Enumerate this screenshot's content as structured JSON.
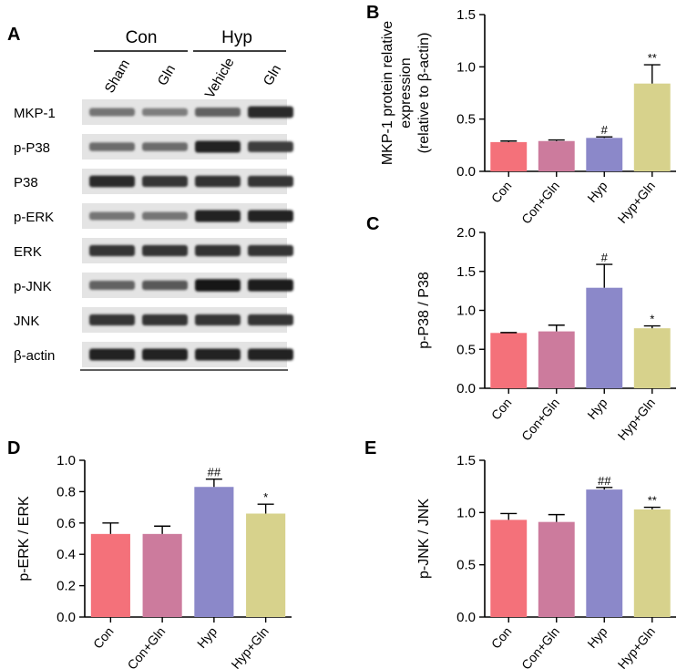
{
  "figure": {
    "blot": {
      "panel_label": "A",
      "groups": [
        "Con",
        "Hyp"
      ],
      "lanes": [
        "Sham",
        "Gln",
        "Vehicle",
        "Gln"
      ],
      "rows": [
        {
          "label": "MKP-1",
          "intensity": [
            0.45,
            0.4,
            0.55,
            0.85
          ]
        },
        {
          "label": "p-P38",
          "intensity": [
            0.5,
            0.5,
            0.9,
            0.75
          ]
        },
        {
          "label": "P38",
          "intensity": [
            0.85,
            0.8,
            0.82,
            0.8
          ]
        },
        {
          "label": "p-ERK",
          "intensity": [
            0.45,
            0.45,
            0.9,
            0.9
          ]
        },
        {
          "label": "ERK",
          "intensity": [
            0.8,
            0.8,
            0.82,
            0.8
          ]
        },
        {
          "label": "p-JNK",
          "intensity": [
            0.55,
            0.6,
            0.95,
            0.92
          ]
        },
        {
          "label": "JNK",
          "intensity": [
            0.8,
            0.8,
            0.8,
            0.8
          ]
        },
        {
          "label": "β-actin",
          "intensity": [
            0.9,
            0.9,
            0.9,
            0.9
          ]
        }
      ]
    }
  },
  "chart_data": [
    {
      "panel_label": "B",
      "type": "bar",
      "categories": [
        "Con",
        "Con+Gln",
        "Hyp",
        "Hyp+Gln"
      ],
      "values": [
        0.28,
        0.29,
        0.32,
        0.84
      ],
      "errors": [
        0.01,
        0.01,
        0.01,
        0.18
      ],
      "annotations": [
        "",
        "",
        "#",
        "**"
      ],
      "ylabel_lines": [
        "MKP-1 protein relative",
        "expression",
        "(relative to β-actin)"
      ],
      "ylim": [
        0,
        1.5
      ],
      "yticks": [
        "0.0",
        "0.5",
        "1.0",
        "1.5"
      ]
    },
    {
      "panel_label": "C",
      "type": "bar",
      "categories": [
        "Con",
        "Con+Gln",
        "Hyp",
        "Hyp+Gln"
      ],
      "values": [
        0.71,
        0.73,
        1.29,
        0.77
      ],
      "errors": [
        0.005,
        0.08,
        0.3,
        0.03
      ],
      "annotations": [
        "",
        "",
        "#",
        "*"
      ],
      "ylabel_lines": [
        "p-P38 / P38"
      ],
      "ylim": [
        0,
        2.0
      ],
      "yticks": [
        "0.0",
        "0.5",
        "1.0",
        "1.5",
        "2.0"
      ]
    },
    {
      "panel_label": "D",
      "type": "bar",
      "categories": [
        "Con",
        "Con+Gln",
        "Hyp",
        "Hyp+Gln"
      ],
      "values": [
        0.53,
        0.53,
        0.83,
        0.66
      ],
      "errors": [
        0.07,
        0.05,
        0.05,
        0.06
      ],
      "annotations": [
        "",
        "",
        "##",
        "*"
      ],
      "ylabel_lines": [
        "p-ERK / ERK"
      ],
      "ylim": [
        0,
        1.0
      ],
      "yticks": [
        "0.0",
        "0.2",
        "0.4",
        "0.6",
        "0.8",
        "1.0"
      ]
    },
    {
      "panel_label": "E",
      "type": "bar",
      "categories": [
        "Con",
        "Con+Gln",
        "Hyp",
        "Hyp+Gln"
      ],
      "values": [
        0.93,
        0.91,
        1.22,
        1.03
      ],
      "errors": [
        0.06,
        0.07,
        0.02,
        0.02
      ],
      "annotations": [
        "",
        "",
        "##",
        "**"
      ],
      "ylabel_lines": [
        "p-JNK / JNK"
      ],
      "ylim": [
        0,
        1.5
      ],
      "yticks": [
        "0.0",
        "0.5",
        "1.0",
        "1.5"
      ]
    }
  ],
  "colors": {
    "bars": [
      "#f4717a",
      "#cc7b9d",
      "#8b88c9",
      "#d7d28c"
    ],
    "blot_background": "#e4e4e4",
    "axis": "#000000"
  }
}
